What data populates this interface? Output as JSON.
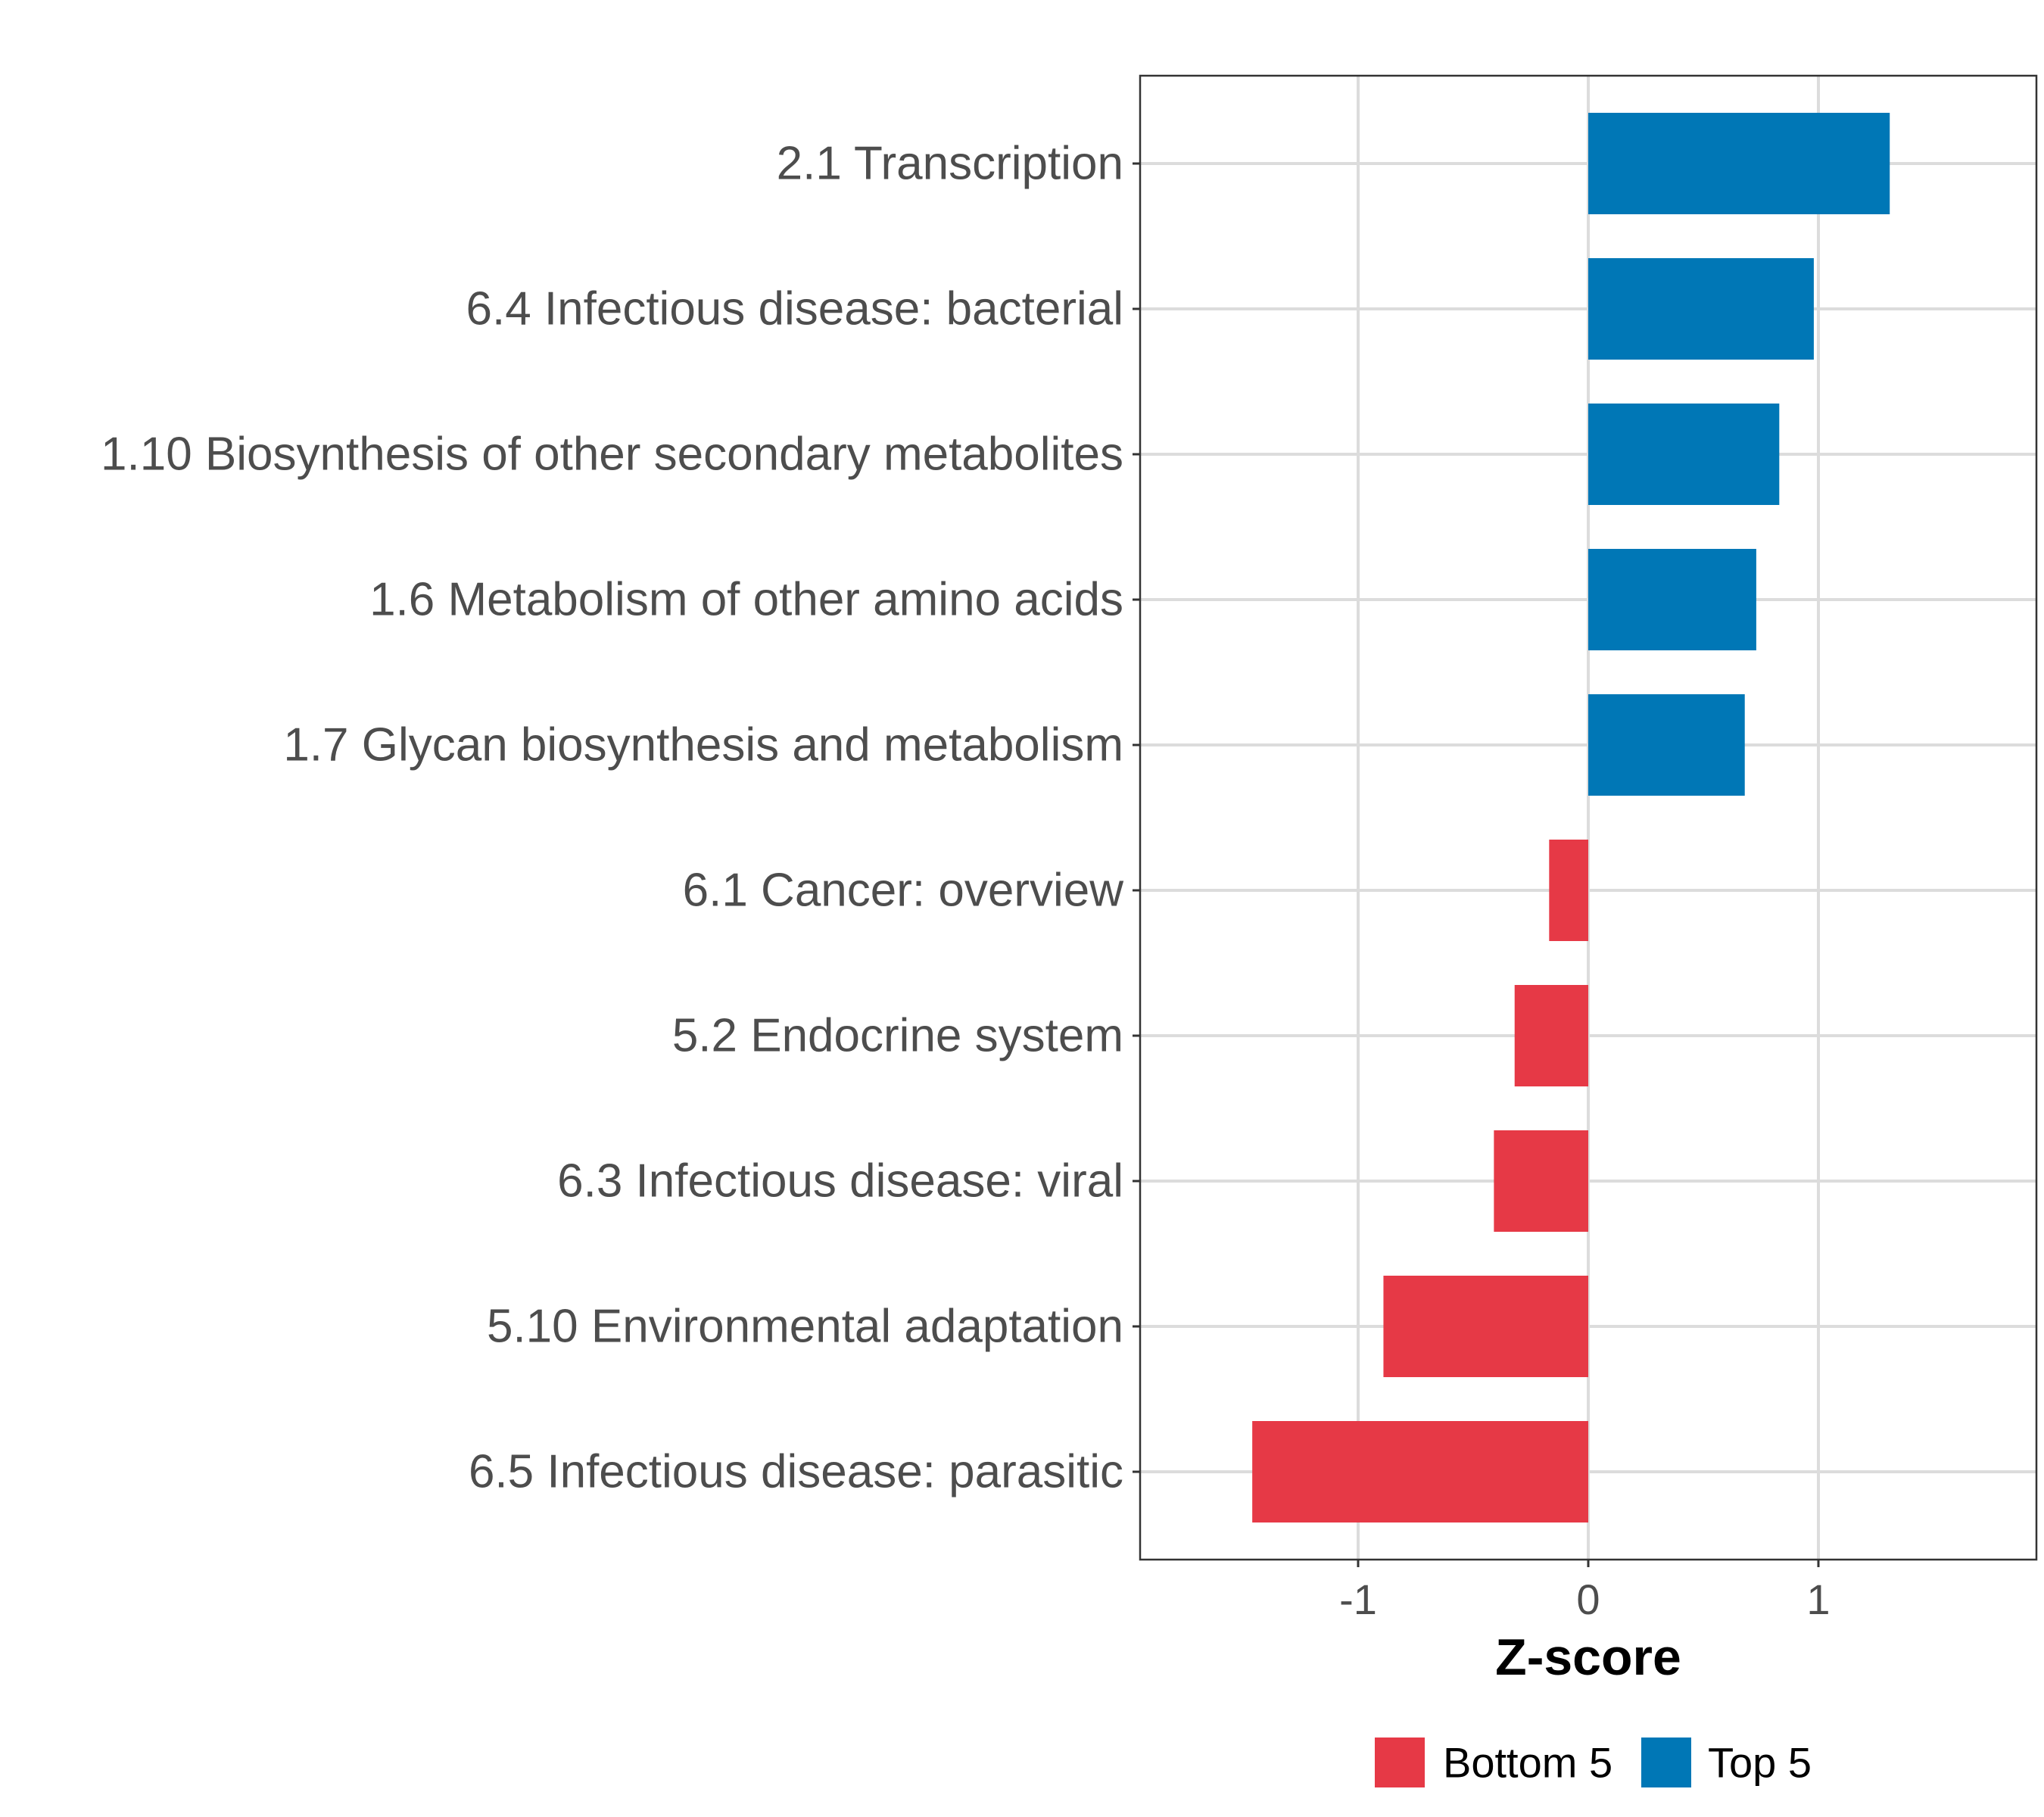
{
  "chart_data": {
    "type": "bar",
    "orientation": "horizontal",
    "title": "",
    "xlabel": "Z-score",
    "ylabel": "",
    "xlim": [
      -1.93,
      1.93
    ],
    "x_ticks": [
      -1,
      0,
      1
    ],
    "x_tick_labels": [
      "-1",
      "0",
      "1"
    ],
    "grid": true,
    "legend_position": "bottom",
    "categories": [
      "2.1 Transcription",
      "6.4 Infectious disease: bacterial",
      "1.10 Biosynthesis of other secondary metabolites",
      "1.6 Metabolism of other amino acids",
      "1.7 Glycan biosynthesis and metabolism",
      "6.1 Cancer: overview",
      "5.2 Endocrine system",
      "6.3 Infectious disease: viral",
      "5.10 Environmental adaptation",
      "6.5 Infectious disease: parasitic"
    ],
    "values": [
      1.31,
      0.98,
      0.83,
      0.73,
      0.68,
      -0.17,
      -0.32,
      -0.41,
      -0.89,
      -1.46
    ],
    "groups": [
      "Top 5",
      "Top 5",
      "Top 5",
      "Top 5",
      "Top 5",
      "Bottom 5",
      "Bottom 5",
      "Bottom 5",
      "Bottom 5",
      "Bottom 5"
    ],
    "legend": [
      {
        "name": "Bottom 5",
        "color": "#e63946"
      },
      {
        "name": "Top 5",
        "color": "#0077b6"
      }
    ]
  }
}
